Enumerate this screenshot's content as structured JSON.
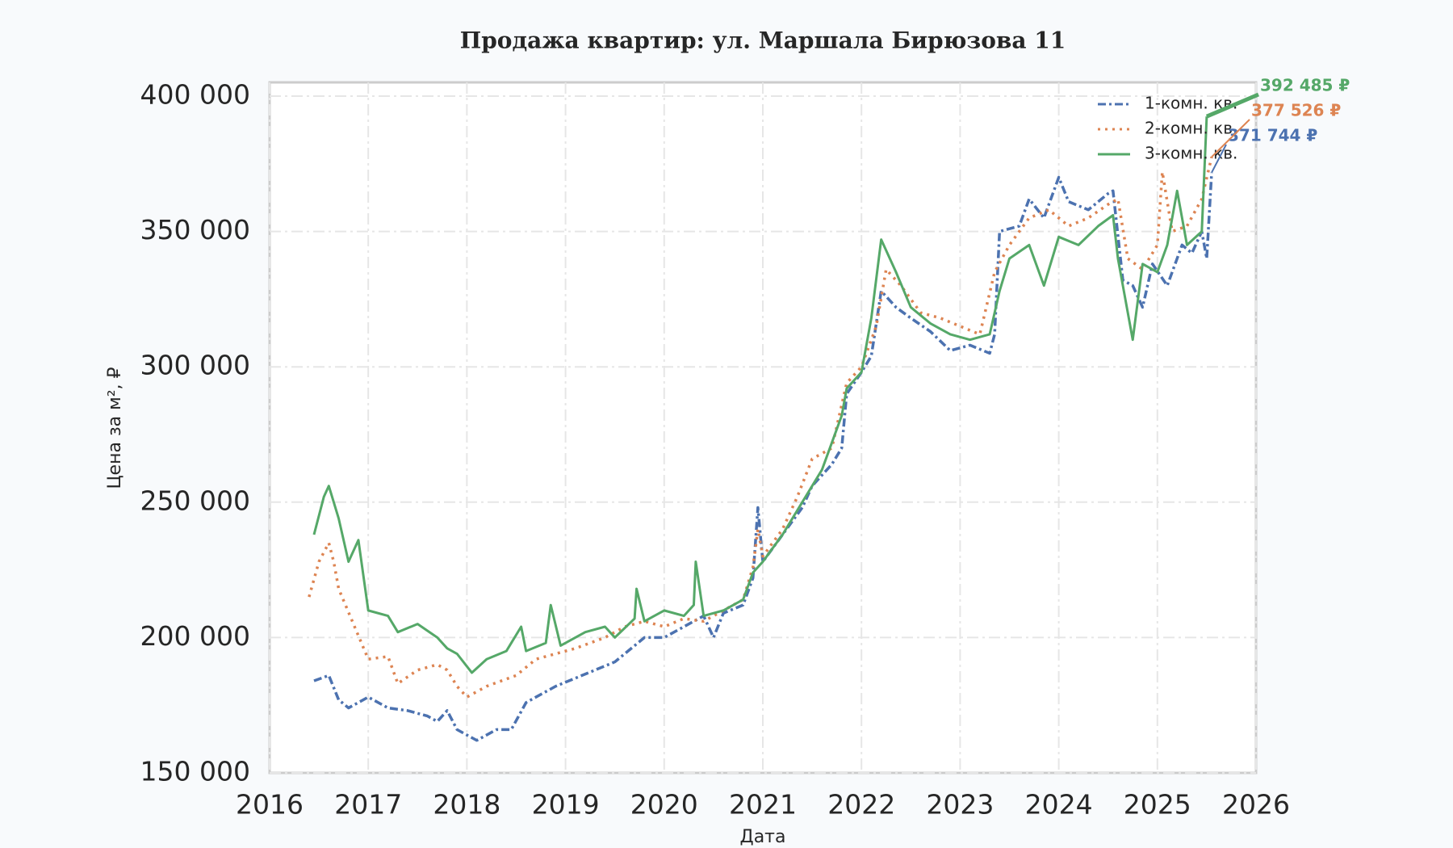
{
  "chart_data": {
    "type": "line",
    "title": "Продажа квартир: ул. Маршала Бирюзова 11",
    "x_label": "Дата",
    "y_label": "Цена за м², ₽",
    "xlim": [
      2016,
      2026
    ],
    "xticks": [
      2016,
      2017,
      2018,
      2019,
      2020,
      2021,
      2022,
      2023,
      2024,
      2025,
      2026
    ],
    "ylim": [
      150000,
      400000
    ],
    "yticks": [
      {
        "value": 150000,
        "label": "150 000"
      },
      {
        "value": 200000,
        "label": "200 000"
      },
      {
        "value": 250000,
        "label": "250 000"
      },
      {
        "value": 300000,
        "label": "300 000"
      },
      {
        "value": 350000,
        "label": "350 000"
      },
      {
        "value": 400000,
        "label": "400 000"
      }
    ],
    "grid": true,
    "legend": "upper right",
    "series": [
      {
        "name": "1-комн. кв.",
        "color": "#4c72b0",
        "dash": "dashdot",
        "x": [
          2016.45,
          2016.6,
          2016.7,
          2016.8,
          2017.0,
          2017.2,
          2017.4,
          2017.6,
          2017.7,
          2017.8,
          2017.9,
          2018.1,
          2018.3,
          2018.45,
          2018.6,
          2018.8,
          2018.9,
          2019.1,
          2019.3,
          2019.5,
          2019.6,
          2019.8,
          2020.0,
          2020.2,
          2020.4,
          2020.5,
          2020.6,
          2020.8,
          2020.9,
          2020.95,
          2021.0,
          2021.2,
          2021.4,
          2021.5,
          2021.7,
          2021.8,
          2021.85,
          2022.0,
          2022.1,
          2022.2,
          2022.35,
          2022.5,
          2022.7,
          2022.9,
          2023.1,
          2023.3,
          2023.35,
          2023.4,
          2023.6,
          2023.7,
          2023.85,
          2024.0,
          2024.1,
          2024.3,
          2024.5,
          2024.55,
          2024.65,
          2024.75,
          2024.85,
          2024.95,
          2025.1,
          2025.25,
          2025.35,
          2025.45,
          2025.5,
          2025.55
        ],
        "values": [
          184000,
          186000,
          177000,
          174000,
          178000,
          174000,
          173000,
          171000,
          169000,
          173000,
          166000,
          162000,
          166000,
          166000,
          176000,
          180000,
          182000,
          185000,
          188000,
          191000,
          194000,
          200000,
          200000,
          204000,
          208000,
          200000,
          209000,
          212000,
          222000,
          248000,
          228000,
          238000,
          248000,
          256000,
          264000,
          270000,
          290000,
          298000,
          304000,
          328000,
          322000,
          318000,
          313000,
          306000,
          308000,
          305000,
          312000,
          350000,
          352000,
          362000,
          355000,
          370000,
          361000,
          358000,
          364000,
          365000,
          332000,
          330000,
          322000,
          338000,
          330000,
          345000,
          342000,
          350000,
          340000,
          371744
        ]
      },
      {
        "name": "2-комн. кв.",
        "color": "#dd8452",
        "dash": "dotted",
        "x": [
          2016.4,
          2016.5,
          2016.6,
          2016.65,
          2016.7,
          2016.85,
          2017.0,
          2017.2,
          2017.3,
          2017.5,
          2017.7,
          2017.8,
          2017.9,
          2018.0,
          2018.2,
          2018.5,
          2018.7,
          2018.9,
          2019.1,
          2019.4,
          2019.6,
          2019.8,
          2020.0,
          2020.2,
          2020.4,
          2020.6,
          2020.8,
          2020.9,
          2020.95,
          2021.0,
          2021.2,
          2021.35,
          2021.5,
          2021.7,
          2021.85,
          2022.0,
          2022.15,
          2022.25,
          2022.4,
          2022.6,
          2022.8,
          2023.0,
          2023.2,
          2023.35,
          2023.5,
          2023.7,
          2023.9,
          2024.1,
          2024.3,
          2024.5,
          2024.6,
          2024.7,
          2024.85,
          2025.0,
          2025.05,
          2025.15,
          2025.3,
          2025.45,
          2025.55
        ],
        "values": [
          215000,
          228000,
          235000,
          228000,
          218000,
          205000,
          192000,
          193000,
          183000,
          188000,
          190000,
          188000,
          182000,
          178000,
          182000,
          186000,
          192000,
          194000,
          196000,
          200000,
          204000,
          206000,
          204000,
          207000,
          206000,
          210000,
          214000,
          226000,
          240000,
          230000,
          240000,
          252000,
          266000,
          270000,
          294000,
          300000,
          315000,
          336000,
          330000,
          320000,
          318000,
          315000,
          312000,
          335000,
          345000,
          355000,
          358000,
          352000,
          355000,
          360000,
          362000,
          340000,
          336000,
          345000,
          372000,
          350000,
          352000,
          362000,
          377526
        ]
      },
      {
        "name": "3-комн. кв.",
        "color": "#55a868",
        "dash": "solid",
        "x": [
          2016.45,
          2016.55,
          2016.6,
          2016.7,
          2016.8,
          2016.9,
          2017.0,
          2017.2,
          2017.3,
          2017.5,
          2017.7,
          2017.8,
          2017.9,
          2018.05,
          2018.2,
          2018.4,
          2018.55,
          2018.6,
          2018.8,
          2018.85,
          2018.95,
          2019.2,
          2019.4,
          2019.5,
          2019.7,
          2019.72,
          2019.8,
          2020.0,
          2020.2,
          2020.3,
          2020.32,
          2020.4,
          2020.6,
          2020.8,
          2020.9,
          2021.0,
          2021.2,
          2021.4,
          2021.6,
          2021.7,
          2021.8,
          2021.85,
          2022.0,
          2022.1,
          2022.2,
          2022.35,
          2022.5,
          2022.7,
          2022.9,
          2023.1,
          2023.3,
          2023.4,
          2023.5,
          2023.7,
          2023.85,
          2024.0,
          2024.2,
          2024.4,
          2024.55,
          2024.6,
          2024.75,
          2024.85,
          2025.0,
          2025.1,
          2025.2,
          2025.3,
          2025.45,
          2025.5
        ],
        "values": [
          238000,
          252000,
          256000,
          244000,
          228000,
          236000,
          210000,
          208000,
          202000,
          205000,
          200000,
          196000,
          194000,
          187000,
          192000,
          195000,
          204000,
          195000,
          198000,
          212000,
          197000,
          202000,
          204000,
          200000,
          207000,
          218000,
          206000,
          210000,
          208000,
          212000,
          228000,
          208000,
          210000,
          214000,
          224000,
          228000,
          238000,
          250000,
          262000,
          272000,
          282000,
          292000,
          298000,
          318000,
          347000,
          335000,
          322000,
          316000,
          312000,
          310000,
          312000,
          328000,
          340000,
          345000,
          330000,
          348000,
          345000,
          352000,
          356000,
          340000,
          310000,
          338000,
          335000,
          345000,
          365000,
          345000,
          350000,
          392485
        ]
      }
    ],
    "annotations": [
      {
        "text": "371 744 ₽",
        "value": 371744
      },
      {
        "text": "377 526 ₽",
        "value": 377526
      },
      {
        "text": "392 485 ₽",
        "value": 392485
      }
    ]
  }
}
